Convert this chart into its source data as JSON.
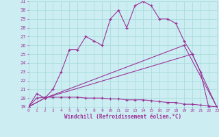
{
  "xlabel": "Windchill (Refroidissement éolien,°C)",
  "bg_color": "#cceef2",
  "grid_color": "#aadddd",
  "line_color": "#993399",
  "xmin": 0,
  "xmax": 23,
  "ymin": 19,
  "ymax": 31,
  "xticks": [
    0,
    1,
    2,
    3,
    4,
    5,
    6,
    7,
    8,
    9,
    10,
    11,
    12,
    13,
    14,
    15,
    16,
    17,
    18,
    19,
    20,
    21,
    22,
    23
  ],
  "yticks": [
    19,
    20,
    21,
    22,
    23,
    24,
    25,
    26,
    27,
    28,
    29,
    30,
    31
  ],
  "line1_x": [
    0,
    1,
    2,
    3,
    4,
    5,
    6,
    7,
    8,
    9,
    10,
    11,
    12,
    13,
    14,
    15,
    16,
    17,
    18,
    19,
    20,
    21,
    22
  ],
  "line1_y": [
    19,
    20.5,
    20,
    21,
    23,
    25.5,
    25.5,
    27,
    26.5,
    26,
    29.0,
    30.0,
    28.0,
    30.5,
    31.0,
    30.5,
    29.0,
    29.0,
    28.5,
    26.5,
    25.0,
    23.0,
    19.0
  ],
  "line2_x": [
    0,
    1,
    2,
    3,
    4,
    5,
    6,
    7,
    8,
    9,
    10,
    11,
    12,
    13,
    14,
    15,
    16,
    17,
    18,
    19,
    20,
    21,
    22,
    23
  ],
  "line2_y": [
    19.0,
    20.0,
    20.1,
    20.1,
    20.1,
    20.1,
    20.1,
    20.0,
    20.0,
    20.0,
    19.9,
    19.9,
    19.8,
    19.8,
    19.8,
    19.7,
    19.6,
    19.5,
    19.5,
    19.3,
    19.3,
    19.2,
    19.1,
    19.0
  ],
  "line3_x": [
    0,
    2,
    19,
    23
  ],
  "line3_y": [
    19.0,
    20.0,
    26.0,
    19.0
  ],
  "line4_x": [
    0,
    2,
    20,
    23
  ],
  "line4_y": [
    19.0,
    20.0,
    25.0,
    19.0
  ]
}
